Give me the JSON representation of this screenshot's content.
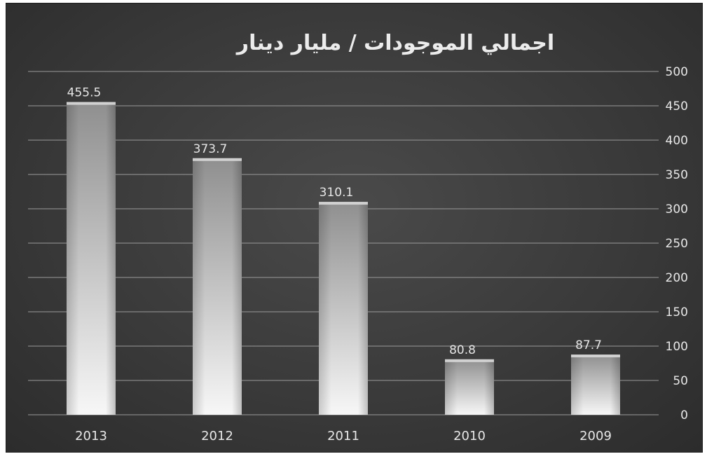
{
  "chart_data": {
    "type": "bar",
    "title": "اجمالي الموجودات / مليار دينار",
    "categories": [
      "2013",
      "2012",
      "2011",
      "2010",
      "2009"
    ],
    "values": [
      455.5,
      373.7,
      310.1,
      80.8,
      87.7
    ],
    "data_labels": [
      "455.5",
      "373.7",
      "310.1",
      "80.8",
      "87.7"
    ],
    "ylim": [
      0,
      500
    ],
    "yticks": [
      0,
      50,
      100,
      150,
      200,
      250,
      300,
      350,
      400,
      450,
      500
    ],
    "y_axis_position": "right",
    "grid": true,
    "legend": "none"
  },
  "colors": {
    "background": "#3a3a3a",
    "gridline": "#9a9a9a",
    "bar_top": "#8f8f8f",
    "bar_bottom": "#f7f7f7",
    "text": "#e8e8e8"
  }
}
